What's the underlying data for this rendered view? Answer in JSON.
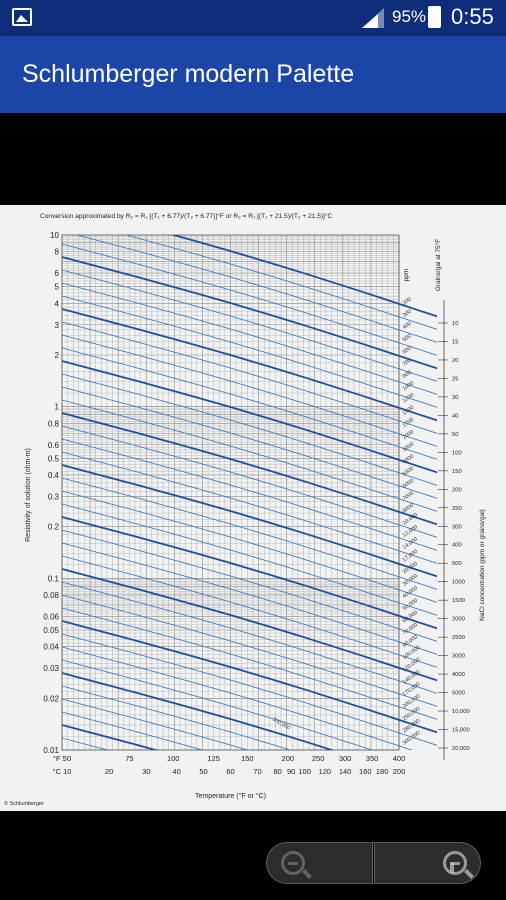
{
  "status_bar": {
    "battery_percent": "95%",
    "time": "0:55",
    "icons": [
      "gallery-icon",
      "signal-icon",
      "battery-charging-icon"
    ]
  },
  "app_bar": {
    "title": "Schlumberger modern Palette"
  },
  "chart_data": {
    "type": "line",
    "title": "Conversion approximated by R₂ = R₁ [(T₁ + 6.77)/(T₂ + 6.77)]°F or R₂ = R₁ [(T₁ + 21.5)/(T₂ + 21.5)]°C",
    "ylabel": "Resistivity of solution (ohm-m)",
    "xlabel": "Temperature (°F or °C)",
    "y_scale": "log",
    "ylim": [
      0.01,
      10
    ],
    "y_ticks": [
      "10",
      "8",
      "6",
      "5",
      "4",
      "3",
      "2",
      "1",
      "0.8",
      "0.6",
      "0.5",
      "0.4",
      "0.3",
      "0.2",
      "0.1",
      "0.08",
      "0.06",
      "0.05",
      "0.04",
      "0.03",
      "0.02",
      "0.01"
    ],
    "x_ticks_f": [
      "°F 50",
      "75",
      "100",
      "125",
      "150",
      "200",
      "250",
      "300",
      "350",
      "400"
    ],
    "x_ticks_c": [
      "°C 10",
      "20",
      "30",
      "40",
      "50",
      "60",
      "70",
      "80",
      "90",
      "100",
      "120",
      "140",
      "160",
      "180",
      "200"
    ],
    "right_label_ppm": "ppm",
    "right_label_grains": "Grains/gal at 75°F",
    "right_axis_title": "NaCl concentration (ppm or grains/gal)",
    "ppm_labels": [
      "200",
      "300",
      "400",
      "500",
      "600",
      "700",
      "800",
      "1000",
      "1200",
      "1400",
      "1700",
      "2000",
      "3000",
      "4000",
      "5000",
      "6000",
      "7000",
      "8000",
      "10,000",
      "12,000",
      "14,000",
      "17,000",
      "20,000",
      "30,000",
      "40,000",
      "50,000",
      "60,000",
      "70,000",
      "80,000",
      "100,000",
      "120,000",
      "140,000",
      "170,000",
      "200,000",
      "250,000",
      "280,000",
      "300,000"
    ],
    "grains_labels": [
      "10",
      "15",
      "20",
      "25",
      "30",
      "40",
      "50",
      "100",
      "150",
      "200",
      "250",
      "300",
      "400",
      "500",
      "1000",
      "1500",
      "2000",
      "2500",
      "3000",
      "4000",
      "5000",
      "10,000",
      "15,000",
      "20,000"
    ],
    "curve_label": "300,000",
    "copyright": "© Schlumberger"
  }
}
